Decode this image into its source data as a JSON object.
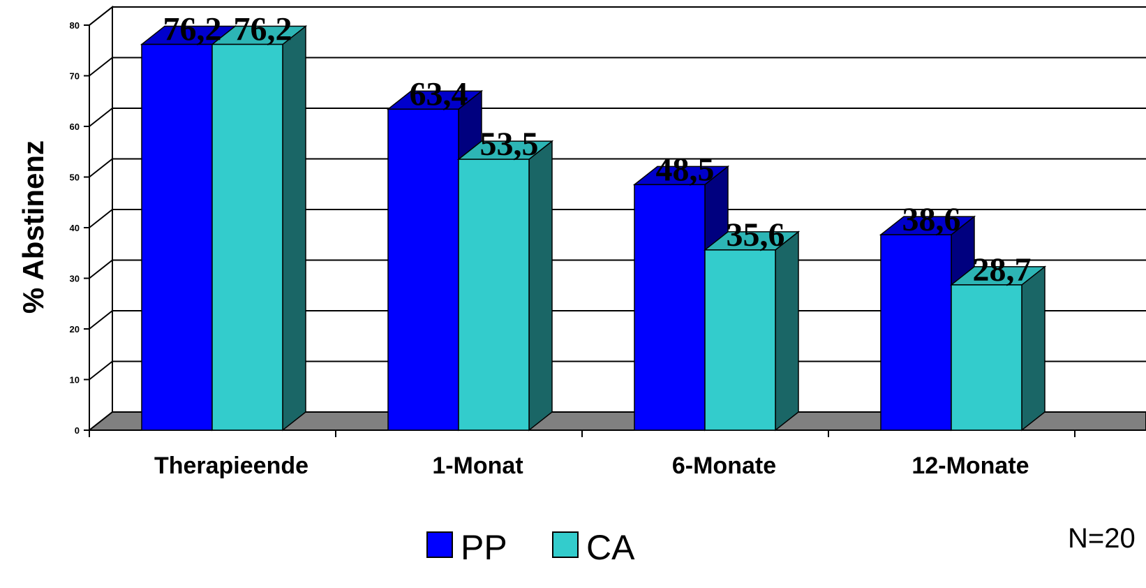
{
  "chart_data": {
    "type": "bar",
    "ylabel": "% Abstinenz",
    "xlabel": "",
    "categories": [
      "Therapieende",
      "1-Monat",
      "6-Monate",
      "12-Monate"
    ],
    "series": [
      {
        "name": "PP",
        "values": [
          76.2,
          63.4,
          48.5,
          38.6
        ],
        "labels": [
          "76,2",
          "63,4",
          "48,5",
          "38,6"
        ]
      },
      {
        "name": "CA",
        "values": [
          76.2,
          53.5,
          35.6,
          28.7
        ],
        "labels": [
          "76,2",
          "53,5",
          "35,6",
          "28,7"
        ]
      }
    ],
    "ylim": [
      0,
      80
    ],
    "yticks": [
      0,
      10,
      20,
      30,
      40,
      50,
      60,
      70,
      80
    ],
    "grid": true,
    "style": "3d",
    "legend_position": "bottom"
  },
  "colors": {
    "pp_front": "#0000FF",
    "pp_top": "#0000CC",
    "pp_side": "#00007F",
    "ca_front": "#33CCCC",
    "ca_top": "#2DB5B5",
    "ca_side": "#1A6666",
    "floor": "#808080"
  },
  "note": "N=20"
}
